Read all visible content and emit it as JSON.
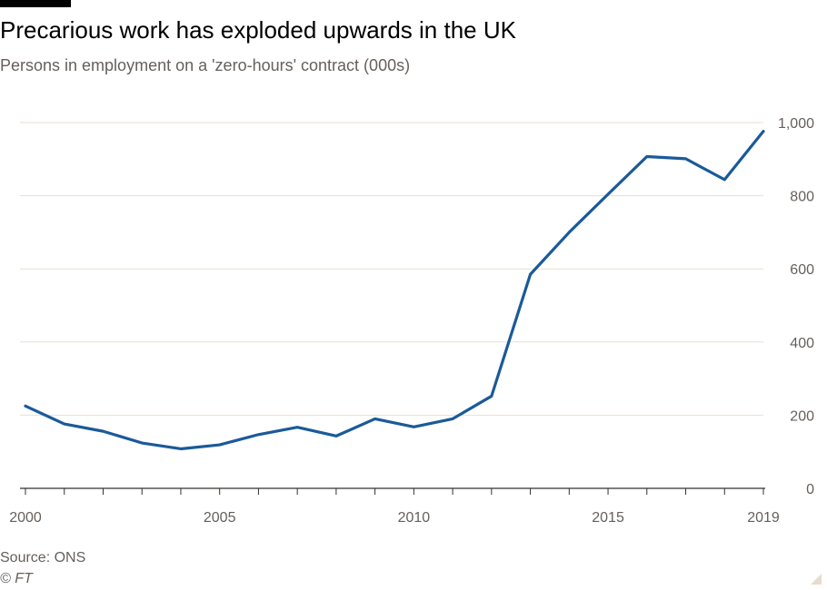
{
  "header": {
    "title": "Precarious work has exploded upwards in the UK",
    "subtitle": "Persons in employment on a 'zero-hours' contract (000s)"
  },
  "footer": {
    "source": "Source: ONS",
    "credit": "© FT"
  },
  "colors": {
    "line": "#1a5a99",
    "grid": "#e9dfd2",
    "axis": "#33302e",
    "text": "#66605c"
  },
  "chart_data": {
    "type": "line",
    "x": [
      2000,
      2001,
      2002,
      2003,
      2004,
      2005,
      2006,
      2007,
      2008,
      2009,
      2010,
      2011,
      2012,
      2013,
      2014,
      2015,
      2016,
      2017,
      2018,
      2019
    ],
    "series": [
      {
        "values": [
          225,
          176,
          156,
          124,
          108,
          119,
          147,
          167,
          143,
          190,
          168,
          190,
          252,
          585,
          700,
          804,
          907,
          901,
          844,
          976
        ]
      }
    ],
    "xlim": [
      2000,
      2019
    ],
    "ylim": [
      0,
      1000
    ],
    "yticks": [
      0,
      200,
      400,
      600,
      800,
      1000
    ],
    "ytick_labels": [
      "0",
      "200",
      "400",
      "600",
      "800",
      "1,000"
    ],
    "xtick_labels": [
      "2000",
      "2005",
      "2010",
      "2015",
      "2019"
    ],
    "xtick_label_values": [
      2000,
      2005,
      2010,
      2015,
      2019
    ],
    "y_axis_position": "right",
    "grid": true
  }
}
